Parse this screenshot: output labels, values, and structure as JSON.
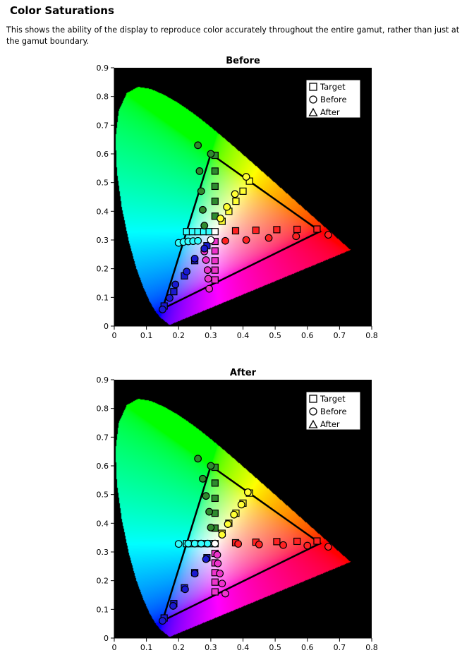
{
  "header": {
    "title": "Color Saturations",
    "description": "This shows the ability of the display to reproduce color accurately throughout the entire gamut, rather than just at the gamut boundary."
  },
  "axes": {
    "xlim": [
      0,
      0.8
    ],
    "ylim": [
      0,
      0.9
    ],
    "x_ticks": [
      "0",
      "0.1",
      "0.2",
      "0.3",
      "0.4",
      "0.5",
      "0.6",
      "0.7",
      "0.8"
    ],
    "y_ticks": [
      "0",
      "0.1",
      "0.2",
      "0.3",
      "0.4",
      "0.5",
      "0.6",
      "0.7",
      "0.8",
      "0.9"
    ]
  },
  "legend": {
    "position": "top-right",
    "items": [
      {
        "label": "Target",
        "marker": "square"
      },
      {
        "label": "Before",
        "marker": "circle"
      },
      {
        "label": "After",
        "marker": "triangle"
      }
    ]
  },
  "colors": {
    "background": "#000000",
    "outline": "#000000",
    "green": "#2e8b2e",
    "yellow": "#ffff33",
    "red": "#ff2222",
    "magenta": "#ee33cc",
    "blue": "#1a1ad0",
    "cyan": "#33ffff",
    "white": "#ffffff"
  },
  "chart_data": [
    {
      "type": "scatter",
      "title": "Before",
      "background": "CIE 1931 chromaticity diagram",
      "xlim": [
        0,
        0.8
      ],
      "ylim": [
        0,
        0.9
      ],
      "gamut_triangle": [
        [
          0.64,
          0.33
        ],
        [
          0.3,
          0.6
        ],
        [
          0.15,
          0.06
        ]
      ],
      "series": [
        {
          "name": "Target",
          "marker": "square",
          "points": [
            {
              "x": 0.313,
              "y": 0.595,
              "color": "green"
            },
            {
              "x": 0.313,
              "y": 0.54,
              "color": "green"
            },
            {
              "x": 0.313,
              "y": 0.487,
              "color": "green"
            },
            {
              "x": 0.313,
              "y": 0.435,
              "color": "green"
            },
            {
              "x": 0.313,
              "y": 0.383,
              "color": "green"
            },
            {
              "x": 0.42,
              "y": 0.505,
              "color": "yellow"
            },
            {
              "x": 0.4,
              "y": 0.47,
              "color": "yellow"
            },
            {
              "x": 0.378,
              "y": 0.435,
              "color": "yellow"
            },
            {
              "x": 0.356,
              "y": 0.4,
              "color": "yellow"
            },
            {
              "x": 0.335,
              "y": 0.365,
              "color": "yellow"
            },
            {
              "x": 0.63,
              "y": 0.338,
              "color": "red"
            },
            {
              "x": 0.568,
              "y": 0.337,
              "color": "red"
            },
            {
              "x": 0.505,
              "y": 0.336,
              "color": "red"
            },
            {
              "x": 0.44,
              "y": 0.334,
              "color": "red"
            },
            {
              "x": 0.377,
              "y": 0.332,
              "color": "red"
            },
            {
              "x": 0.313,
              "y": 0.295,
              "color": "magenta"
            },
            {
              "x": 0.313,
              "y": 0.262,
              "color": "magenta"
            },
            {
              "x": 0.313,
              "y": 0.228,
              "color": "magenta"
            },
            {
              "x": 0.313,
              "y": 0.195,
              "color": "magenta"
            },
            {
              "x": 0.313,
              "y": 0.161,
              "color": "magenta"
            },
            {
              "x": 0.288,
              "y": 0.28,
              "color": "blue"
            },
            {
              "x": 0.25,
              "y": 0.228,
              "color": "blue"
            },
            {
              "x": 0.218,
              "y": 0.175,
              "color": "blue"
            },
            {
              "x": 0.185,
              "y": 0.12,
              "color": "blue"
            },
            {
              "x": 0.155,
              "y": 0.07,
              "color": "blue"
            },
            {
              "x": 0.225,
              "y": 0.329,
              "color": "cyan"
            },
            {
              "x": 0.243,
              "y": 0.329,
              "color": "cyan"
            },
            {
              "x": 0.26,
              "y": 0.329,
              "color": "cyan"
            },
            {
              "x": 0.278,
              "y": 0.329,
              "color": "cyan"
            },
            {
              "x": 0.295,
              "y": 0.329,
              "color": "cyan"
            },
            {
              "x": 0.313,
              "y": 0.329,
              "color": "white"
            }
          ]
        },
        {
          "name": "Before",
          "marker": "circle",
          "points": [
            {
              "x": 0.26,
              "y": 0.63,
              "color": "green"
            },
            {
              "x": 0.3,
              "y": 0.6,
              "color": "green"
            },
            {
              "x": 0.265,
              "y": 0.54,
              "color": "green"
            },
            {
              "x": 0.27,
              "y": 0.47,
              "color": "green"
            },
            {
              "x": 0.275,
              "y": 0.405,
              "color": "green"
            },
            {
              "x": 0.28,
              "y": 0.35,
              "color": "green"
            },
            {
              "x": 0.41,
              "y": 0.52,
              "color": "yellow"
            },
            {
              "x": 0.375,
              "y": 0.46,
              "color": "yellow"
            },
            {
              "x": 0.35,
              "y": 0.415,
              "color": "yellow"
            },
            {
              "x": 0.33,
              "y": 0.375,
              "color": "yellow"
            },
            {
              "x": 0.665,
              "y": 0.318,
              "color": "red"
            },
            {
              "x": 0.565,
              "y": 0.313,
              "color": "red"
            },
            {
              "x": 0.48,
              "y": 0.307,
              "color": "red"
            },
            {
              "x": 0.41,
              "y": 0.3,
              "color": "red"
            },
            {
              "x": 0.345,
              "y": 0.297,
              "color": "red"
            },
            {
              "x": 0.28,
              "y": 0.26,
              "color": "magenta"
            },
            {
              "x": 0.285,
              "y": 0.23,
              "color": "magenta"
            },
            {
              "x": 0.29,
              "y": 0.195,
              "color": "magenta"
            },
            {
              "x": 0.292,
              "y": 0.165,
              "color": "magenta"
            },
            {
              "x": 0.295,
              "y": 0.13,
              "color": "magenta"
            },
            {
              "x": 0.28,
              "y": 0.27,
              "color": "blue"
            },
            {
              "x": 0.25,
              "y": 0.235,
              "color": "blue"
            },
            {
              "x": 0.225,
              "y": 0.19,
              "color": "blue"
            },
            {
              "x": 0.19,
              "y": 0.145,
              "color": "blue"
            },
            {
              "x": 0.172,
              "y": 0.098,
              "color": "blue"
            },
            {
              "x": 0.15,
              "y": 0.058,
              "color": "blue"
            },
            {
              "x": 0.2,
              "y": 0.29,
              "color": "cyan"
            },
            {
              "x": 0.215,
              "y": 0.293,
              "color": "cyan"
            },
            {
              "x": 0.23,
              "y": 0.295,
              "color": "cyan"
            },
            {
              "x": 0.245,
              "y": 0.296,
              "color": "cyan"
            },
            {
              "x": 0.26,
              "y": 0.297,
              "color": "cyan"
            },
            {
              "x": 0.3,
              "y": 0.3,
              "color": "white"
            }
          ]
        },
        {
          "name": "After",
          "marker": "triangle",
          "points": []
        }
      ]
    },
    {
      "type": "scatter",
      "title": "After",
      "background": "CIE 1931 chromaticity diagram",
      "xlim": [
        0,
        0.8
      ],
      "ylim": [
        0,
        0.9
      ],
      "gamut_triangle": [
        [
          0.64,
          0.33
        ],
        [
          0.3,
          0.6
        ],
        [
          0.15,
          0.06
        ]
      ],
      "series": [
        {
          "name": "Target",
          "marker": "square",
          "points": [
            {
              "x": 0.313,
              "y": 0.595,
              "color": "green"
            },
            {
              "x": 0.313,
              "y": 0.54,
              "color": "green"
            },
            {
              "x": 0.313,
              "y": 0.487,
              "color": "green"
            },
            {
              "x": 0.313,
              "y": 0.435,
              "color": "green"
            },
            {
              "x": 0.313,
              "y": 0.383,
              "color": "green"
            },
            {
              "x": 0.42,
              "y": 0.505,
              "color": "yellow"
            },
            {
              "x": 0.4,
              "y": 0.47,
              "color": "yellow"
            },
            {
              "x": 0.378,
              "y": 0.435,
              "color": "yellow"
            },
            {
              "x": 0.356,
              "y": 0.4,
              "color": "yellow"
            },
            {
              "x": 0.335,
              "y": 0.365,
              "color": "yellow"
            },
            {
              "x": 0.63,
              "y": 0.338,
              "color": "red"
            },
            {
              "x": 0.568,
              "y": 0.337,
              "color": "red"
            },
            {
              "x": 0.505,
              "y": 0.336,
              "color": "red"
            },
            {
              "x": 0.44,
              "y": 0.334,
              "color": "red"
            },
            {
              "x": 0.377,
              "y": 0.332,
              "color": "red"
            },
            {
              "x": 0.313,
              "y": 0.295,
              "color": "magenta"
            },
            {
              "x": 0.313,
              "y": 0.262,
              "color": "magenta"
            },
            {
              "x": 0.313,
              "y": 0.228,
              "color": "magenta"
            },
            {
              "x": 0.313,
              "y": 0.195,
              "color": "magenta"
            },
            {
              "x": 0.313,
              "y": 0.161,
              "color": "magenta"
            },
            {
              "x": 0.288,
              "y": 0.28,
              "color": "blue"
            },
            {
              "x": 0.25,
              "y": 0.228,
              "color": "blue"
            },
            {
              "x": 0.218,
              "y": 0.175,
              "color": "blue"
            },
            {
              "x": 0.185,
              "y": 0.12,
              "color": "blue"
            },
            {
              "x": 0.155,
              "y": 0.07,
              "color": "blue"
            },
            {
              "x": 0.225,
              "y": 0.329,
              "color": "cyan"
            },
            {
              "x": 0.243,
              "y": 0.329,
              "color": "cyan"
            },
            {
              "x": 0.26,
              "y": 0.329,
              "color": "cyan"
            },
            {
              "x": 0.278,
              "y": 0.329,
              "color": "cyan"
            },
            {
              "x": 0.295,
              "y": 0.329,
              "color": "cyan"
            },
            {
              "x": 0.313,
              "y": 0.329,
              "color": "white"
            }
          ]
        },
        {
          "name": "Before",
          "marker": "circle",
          "points": [
            {
              "x": 0.26,
              "y": 0.625,
              "color": "green"
            },
            {
              "x": 0.3,
              "y": 0.6,
              "color": "green"
            },
            {
              "x": 0.275,
              "y": 0.555,
              "color": "green"
            },
            {
              "x": 0.285,
              "y": 0.495,
              "color": "green"
            },
            {
              "x": 0.295,
              "y": 0.44,
              "color": "green"
            },
            {
              "x": 0.3,
              "y": 0.385,
              "color": "green"
            },
            {
              "x": 0.415,
              "y": 0.508,
              "color": "yellow"
            },
            {
              "x": 0.395,
              "y": 0.465,
              "color": "yellow"
            },
            {
              "x": 0.372,
              "y": 0.43,
              "color": "yellow"
            },
            {
              "x": 0.353,
              "y": 0.397,
              "color": "yellow"
            },
            {
              "x": 0.335,
              "y": 0.36,
              "color": "yellow"
            },
            {
              "x": 0.665,
              "y": 0.318,
              "color": "red"
            },
            {
              "x": 0.6,
              "y": 0.322,
              "color": "red"
            },
            {
              "x": 0.525,
              "y": 0.324,
              "color": "red"
            },
            {
              "x": 0.45,
              "y": 0.326,
              "color": "red"
            },
            {
              "x": 0.385,
              "y": 0.328,
              "color": "red"
            },
            {
              "x": 0.32,
              "y": 0.29,
              "color": "magenta"
            },
            {
              "x": 0.322,
              "y": 0.26,
              "color": "magenta"
            },
            {
              "x": 0.328,
              "y": 0.225,
              "color": "magenta"
            },
            {
              "x": 0.335,
              "y": 0.19,
              "color": "magenta"
            },
            {
              "x": 0.345,
              "y": 0.155,
              "color": "magenta"
            },
            {
              "x": 0.285,
              "y": 0.275,
              "color": "blue"
            },
            {
              "x": 0.25,
              "y": 0.225,
              "color": "blue"
            },
            {
              "x": 0.22,
              "y": 0.17,
              "color": "blue"
            },
            {
              "x": 0.183,
              "y": 0.112,
              "color": "blue"
            },
            {
              "x": 0.15,
              "y": 0.06,
              "color": "blue"
            },
            {
              "x": 0.2,
              "y": 0.328,
              "color": "cyan"
            },
            {
              "x": 0.23,
              "y": 0.329,
              "color": "cyan"
            },
            {
              "x": 0.25,
              "y": 0.329,
              "color": "cyan"
            },
            {
              "x": 0.27,
              "y": 0.329,
              "color": "cyan"
            },
            {
              "x": 0.29,
              "y": 0.329,
              "color": "cyan"
            },
            {
              "x": 0.313,
              "y": 0.329,
              "color": "white"
            }
          ]
        },
        {
          "name": "After",
          "marker": "triangle",
          "points": []
        }
      ]
    }
  ]
}
